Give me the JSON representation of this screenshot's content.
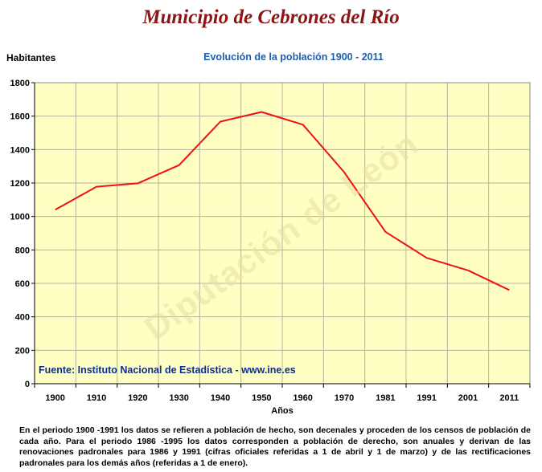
{
  "page": {
    "title": "Municipio de Cebrones del Río",
    "source": "Fuente: Instituto Nacional de Estadística - www.ine.es",
    "watermark": "Diputación de León",
    "footnote": "En el periodo 1900 -1991 los datos se refieren a población de hecho, son decenales y proceden de los censos de población de cada año. Para el periodo 1986 -1995 los datos corresponden a población de derecho, son anuales y derivan de las renovaciones padronales para 1986 y 1991 (cifras oficiales referidas a 1 de abril y 1 de marzo) y de las rectificaciones padronales para los demás años (referidas a 1 de enero)."
  },
  "chart_data": {
    "type": "line",
    "title": "Evolución de la población 1900 - 2011",
    "xlabel": "Años",
    "ylabel": "Habitantes",
    "categories": [
      "1900",
      "1910",
      "1920",
      "1930",
      "1940",
      "1950",
      "1960",
      "1970",
      "1981",
      "1991",
      "2001",
      "2011"
    ],
    "series": [
      {
        "values": [
          1040,
          1178,
          1198,
          1307,
          1567,
          1625,
          1549,
          1265,
          908,
          752,
          678,
          560
        ]
      }
    ],
    "ylim": [
      0,
      1800
    ],
    "yticks": [
      0,
      200,
      400,
      600,
      800,
      1000,
      1200,
      1400,
      1600,
      1800
    ],
    "grid": true,
    "colors": {
      "line": "#ee1111",
      "plot_background": "#ffffc4",
      "grid": "#b3b3a0"
    }
  }
}
